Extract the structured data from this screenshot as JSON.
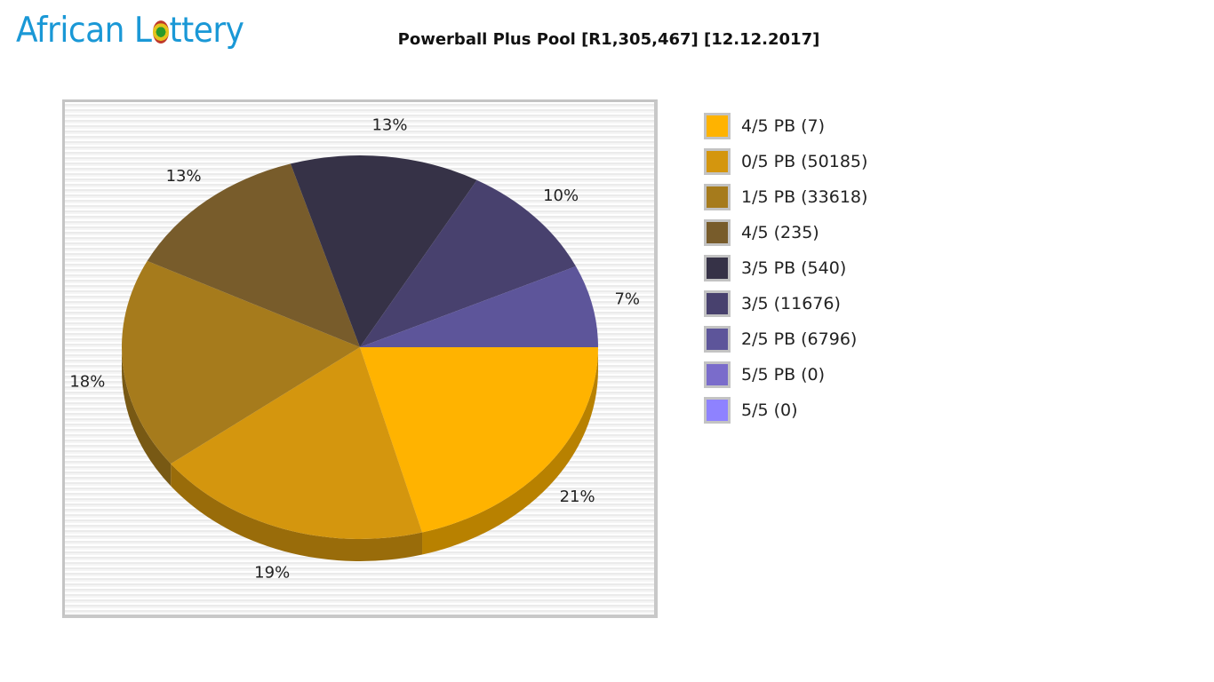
{
  "logo": {
    "text_before": "African L",
    "text_after": "ttery"
  },
  "chart_data": {
    "type": "pie",
    "title": "Powerball Plus Pool [R1,305,467] [12.12.2017]",
    "pool": "R1,305,467",
    "date": "12.12.2017",
    "style": "3d-pie",
    "legend_position": "right",
    "slices": [
      {
        "label": "4/5 PB (7)",
        "division": "4/5 PB",
        "winners": 7,
        "percent": 21,
        "color": "#FFB300"
      },
      {
        "label": "0/5 PB (50185)",
        "division": "0/5 PB",
        "winners": 50185,
        "percent": 19,
        "color": "#D4960E"
      },
      {
        "label": "1/5 PB (33618)",
        "division": "1/5 PB",
        "winners": 33618,
        "percent": 18,
        "color": "#A67B1C"
      },
      {
        "label": "4/5 (235)",
        "division": "4/5",
        "winners": 235,
        "percent": 13,
        "color": "#785C2B"
      },
      {
        "label": "3/5 PB (540)",
        "division": "3/5 PB",
        "winners": 540,
        "percent": 13,
        "color": "#363247"
      },
      {
        "label": "3/5 (11676)",
        "division": "3/5",
        "winners": 11676,
        "percent": 10,
        "color": "#48416E"
      },
      {
        "label": "2/5 PB (6796)",
        "division": "2/5 PB",
        "winners": 6796,
        "percent": 7,
        "color": "#5D559A"
      },
      {
        "label": "5/5 PB (0)",
        "division": "5/5 PB",
        "winners": 0,
        "percent": 0,
        "color": "#7A6CCB"
      },
      {
        "label": "5/5 (0)",
        "division": "5/5",
        "winners": 0,
        "percent": 0,
        "color": "#8E82FF"
      }
    ],
    "pct_labels": [
      "21%",
      "19%",
      "18%",
      "13%",
      "13%",
      "10%",
      "7%"
    ]
  }
}
